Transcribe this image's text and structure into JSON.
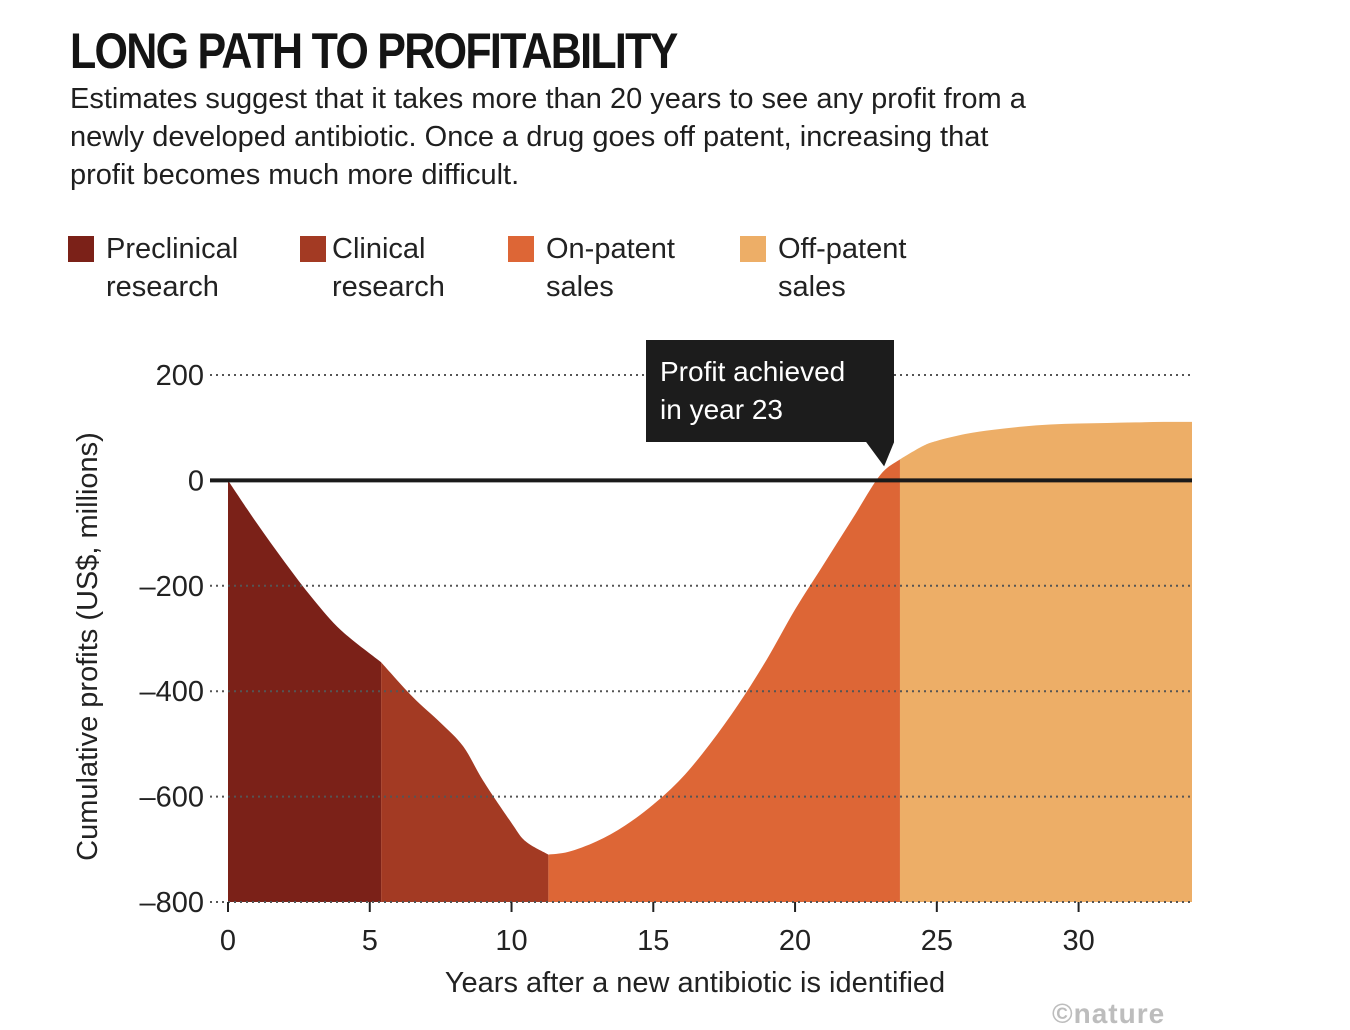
{
  "header": {
    "title": "LONG PATH TO PROFITABILITY",
    "subtitle": "Estimates suggest that it takes more than 20 years to see any profit from a newly developed antibiotic. Once a drug goes off patent, increasing that profit becomes much more difficult."
  },
  "colors": {
    "preclinical": "#7b2118",
    "clinical": "#a33a23",
    "on_patent": "#dd6636",
    "off_patent": "#edae67",
    "zero_line": "#1a1a1a",
    "grid": "#555555",
    "annotation_bg": "#1c1c1c"
  },
  "chart_data": {
    "type": "area",
    "title": "LONG PATH TO PROFITABILITY",
    "xlabel": "Years after a new antibiotic is identified",
    "ylabel": "Cumulative profits (US$, millions)",
    "xlim": [
      0,
      34
    ],
    "ylim": [
      -800,
      200
    ],
    "x_ticks": [
      0,
      5,
      10,
      15,
      20,
      25,
      30
    ],
    "y_ticks": [
      200,
      0,
      -200,
      -400,
      -600,
      -800
    ],
    "grid": "dotted horizontal",
    "legend_position": "top-left",
    "series": [
      {
        "name": "Preclinical research",
        "color": "#7b2118",
        "x": [
          0,
          1,
          2,
          3,
          4,
          5.4
        ],
        "y": [
          0,
          -80,
          -155,
          -225,
          -285,
          -345
        ]
      },
      {
        "name": "Clinical research",
        "color": "#a33a23",
        "x": [
          5.4,
          6.5,
          7.5,
          8.3,
          9,
          10,
          10.5,
          11.3
        ],
        "y": [
          -345,
          -410,
          -460,
          -505,
          -570,
          -650,
          -685,
          -710
        ]
      },
      {
        "name": "On-patent sales",
        "color": "#dd6636",
        "x": [
          11.3,
          12,
          13,
          14,
          15,
          16,
          17,
          18,
          19,
          20,
          21,
          22,
          23,
          23.7
        ],
        "y": [
          -710,
          -705,
          -685,
          -655,
          -615,
          -565,
          -500,
          -425,
          -340,
          -245,
          -160,
          -75,
          10,
          40
        ]
      },
      {
        "name": "Off-patent sales",
        "color": "#edae67",
        "x": [
          23.7,
          24.5,
          25,
          26,
          27,
          28,
          29,
          30,
          31,
          32,
          33,
          34
        ],
        "y": [
          40,
          65,
          75,
          88,
          96,
          102,
          106,
          108,
          109,
          110,
          111,
          111
        ]
      }
    ],
    "annotations": [
      {
        "text_lines": [
          "Profit achieved",
          "in year 23"
        ],
        "x": 23,
        "y": 0
      }
    ]
  },
  "credit": "©nature"
}
